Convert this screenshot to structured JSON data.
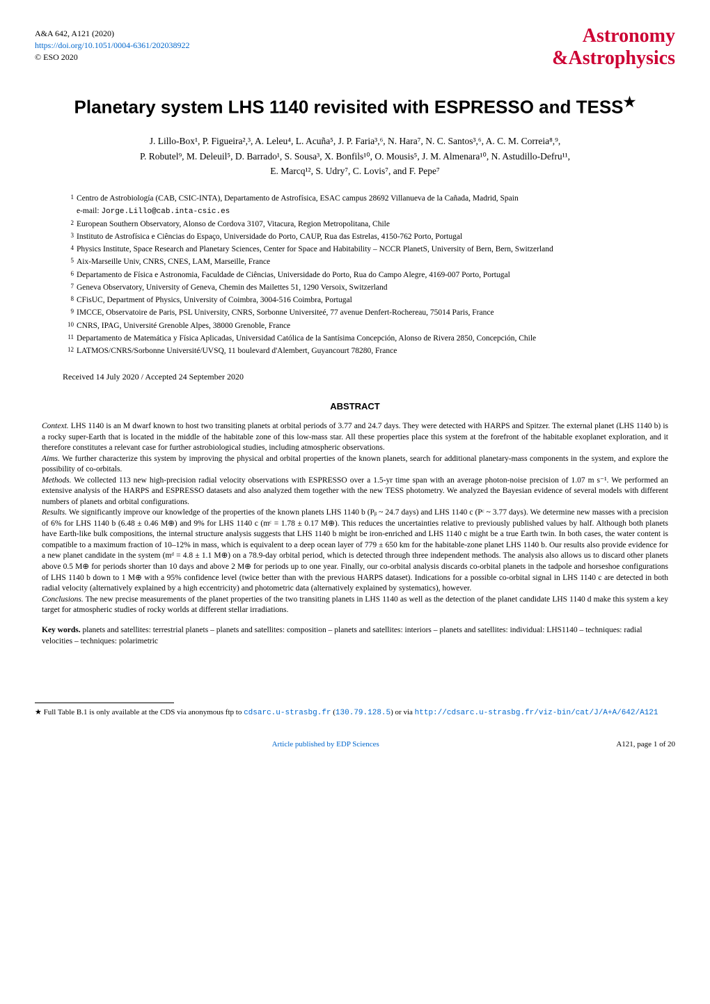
{
  "header": {
    "journal_ref": "A&A 642, A121 (2020)",
    "doi_url": "https://doi.org/10.1051/0004-6361/202038922",
    "copyright": "© ESO 2020",
    "logo_top": "Astronomy",
    "logo_amp": "&",
    "logo_bottom": "Astrophysics"
  },
  "title": "Planetary system LHS 1140 revisited with ESPRESSO and TESS",
  "title_star": "★",
  "authors_line1": "J. Lillo-Box¹, P. Figueira²,³, A. Leleu⁴, L. Acuña⁵, J. P. Faria³,⁶, N. Hara⁷, N. C. Santos³,⁶, A. C. M. Correia⁸,⁹,",
  "authors_line2": "P. Robutel⁹, M. Deleuil⁵, D. Barrado¹, S. Sousa³, X. Bonfils¹⁰, O. Mousis⁵, J. M. Almenara¹⁰, N. Astudillo-Defru¹¹,",
  "authors_line3": "E. Marcq¹², S. Udry⁷, C. Lovis⁷, and F. Pepe⁷",
  "affiliations": [
    {
      "num": "1",
      "text": "Centro de Astrobiología (CAB, CSIC-INTA), Departamento de Astrofísica, ESAC campus 28692 Villanueva de la Cañada, Madrid, Spain"
    },
    {
      "num": "",
      "text": "e-mail: ",
      "email": "Jorge.Lillo@cab.inta-csic.es"
    },
    {
      "num": "2",
      "text": "European Southern Observatory, Alonso de Cordova 3107, Vitacura, Region Metropolitana, Chile"
    },
    {
      "num": "3",
      "text": "Instituto de Astrofísica e Ciências do Espaço, Universidade do Porto, CAUP, Rua das Estrelas, 4150-762 Porto, Portugal"
    },
    {
      "num": "4",
      "text": "Physics Institute, Space Research and Planetary Sciences, Center for Space and Habitability – NCCR PlanetS, University of Bern, Bern, Switzerland"
    },
    {
      "num": "5",
      "text": "Aix-Marseille Univ, CNRS, CNES, LAM, Marseille, France"
    },
    {
      "num": "6",
      "text": "Departamento de Física e Astronomia, Faculdade de Ciências, Universidade do Porto, Rua do Campo Alegre, 4169-007 Porto, Portugal"
    },
    {
      "num": "7",
      "text": "Geneva Observatory, University of Geneva, Chemin des Mailettes 51, 1290 Versoix, Switzerland"
    },
    {
      "num": "8",
      "text": "CFisUC, Department of Physics, University of Coimbra, 3004-516 Coimbra, Portugal"
    },
    {
      "num": "9",
      "text": "IMCCE, Observatoire de Paris, PSL University, CNRS, Sorbonne Universiteé, 77 avenue Denfert-Rochereau, 75014 Paris, France"
    },
    {
      "num": "10",
      "text": "CNRS, IPAG, Université Grenoble Alpes, 38000 Grenoble, France"
    },
    {
      "num": "11",
      "text": "Departamento de Matemática y Física Aplicadas, Universidad Católica de la Santísima Concepción, Alonso de Rivera 2850, Concepción, Chile"
    },
    {
      "num": "12",
      "text": "LATMOS/CNRS/Sorbonne Université/UVSQ, 11 boulevard d'Alembert, Guyancourt 78280, France"
    }
  ],
  "dates": "Received 14 July 2020 / Accepted 24 September 2020",
  "abstract_header": "ABSTRACT",
  "abstract": {
    "context_label": "Context.",
    "context": " LHS 1140 is an M dwarf known to host two transiting planets at orbital periods of 3.77 and 24.7 days. They were detected with HARPS and Spitzer. The external planet (LHS 1140 b) is a rocky super-Earth that is located in the middle of the habitable zone of this low-mass star. All these properties place this system at the forefront of the habitable exoplanet exploration, and it therefore constitutes a relevant case for further astrobiological studies, including atmospheric observations.",
    "aims_label": "Aims.",
    "aims": " We further characterize this system by improving the physical and orbital properties of the known planets, search for additional planetary-mass components in the system, and explore the possibility of co-orbitals.",
    "methods_label": "Methods.",
    "methods": " We collected 113 new high-precision radial velocity observations with ESPRESSO over a 1.5-yr time span with an average photon-noise precision of 1.07 m s⁻¹. We performed an extensive analysis of the HARPS and ESPRESSO datasets and also analyzed them together with the new TESS photometry. We analyzed the Bayesian evidence of several models with different numbers of planets and orbital configurations.",
    "results_label": "Results.",
    "results": " We significantly improve our knowledge of the properties of the known planets LHS 1140 b (Pᵦ ~ 24.7 days) and LHS 1140 c (Pᶜ ~ 3.77 days). We determine new masses with a precision of 6% for LHS 1140 b (6.48 ± 0.46 M⊕) and 9% for LHS 1140 c (mᶜ = 1.78 ± 0.17 M⊕). This reduces the uncertainties relative to previously published values by half. Although both planets have Earth-like bulk compositions, the internal structure analysis suggests that LHS 1140 b might be iron-enriched and LHS 1140 c might be a true Earth twin. In both cases, the water content is compatible to a maximum fraction of 10–12% in mass, which is equivalent to a deep ocean layer of 779 ± 650 km for the habitable-zone planet LHS 1140 b. Our results also provide evidence for a new planet candidate in the system (mᵈ = 4.8 ± 1.1 M⊕) on a 78.9-day orbital period, which is detected through three independent methods. The analysis also allows us to discard other planets above 0.5 M⊕ for periods shorter than 10 days and above 2 M⊕ for periods up to one year. Finally, our co-orbital analysis discards co-orbital planets in the tadpole and horseshoe configurations of LHS 1140 b down to 1 M⊕ with a 95% confidence level (twice better than with the previous HARPS dataset). Indications for a possible co-orbital signal in LHS 1140 c are detected in both radial velocity (alternatively explained by a high eccentricity) and photometric data (alternatively explained by systematics), however.",
    "conclusions_label": "Conclusions.",
    "conclusions": " The new precise measurements of the planet properties of the two transiting planets in LHS 1140 as well as the detection of the planet candidate LHS 1140 d make this system a key target for atmospheric studies of rocky worlds at different stellar irradiations."
  },
  "keywords_label": "Key words.",
  "keywords": " planets and satellites: terrestrial planets – planets and satellites: composition – planets and satellites: interiors – planets and satellites: individual: LHS1140 – techniques: radial velocities – techniques: polarimetric",
  "footnote": {
    "star": "★",
    "text_before": " Full Table B.1 is only available at the CDS via anonymous ftp to ",
    "link1": "cdsarc.u-strasbg.fr",
    "text_mid": " (",
    "link2": "130.79.128.5",
    "text_mid2": ") or via ",
    "link3": "http://cdsarc.u-strasbg.fr/viz-bin/cat/J/A+A/642/A121"
  },
  "footer": {
    "center": "Article published by EDP Sciences",
    "right": "A121, page 1 of 20"
  },
  "colors": {
    "link": "#0066cc",
    "logo": "#cc0033",
    "text": "#000000",
    "background": "#ffffff"
  }
}
